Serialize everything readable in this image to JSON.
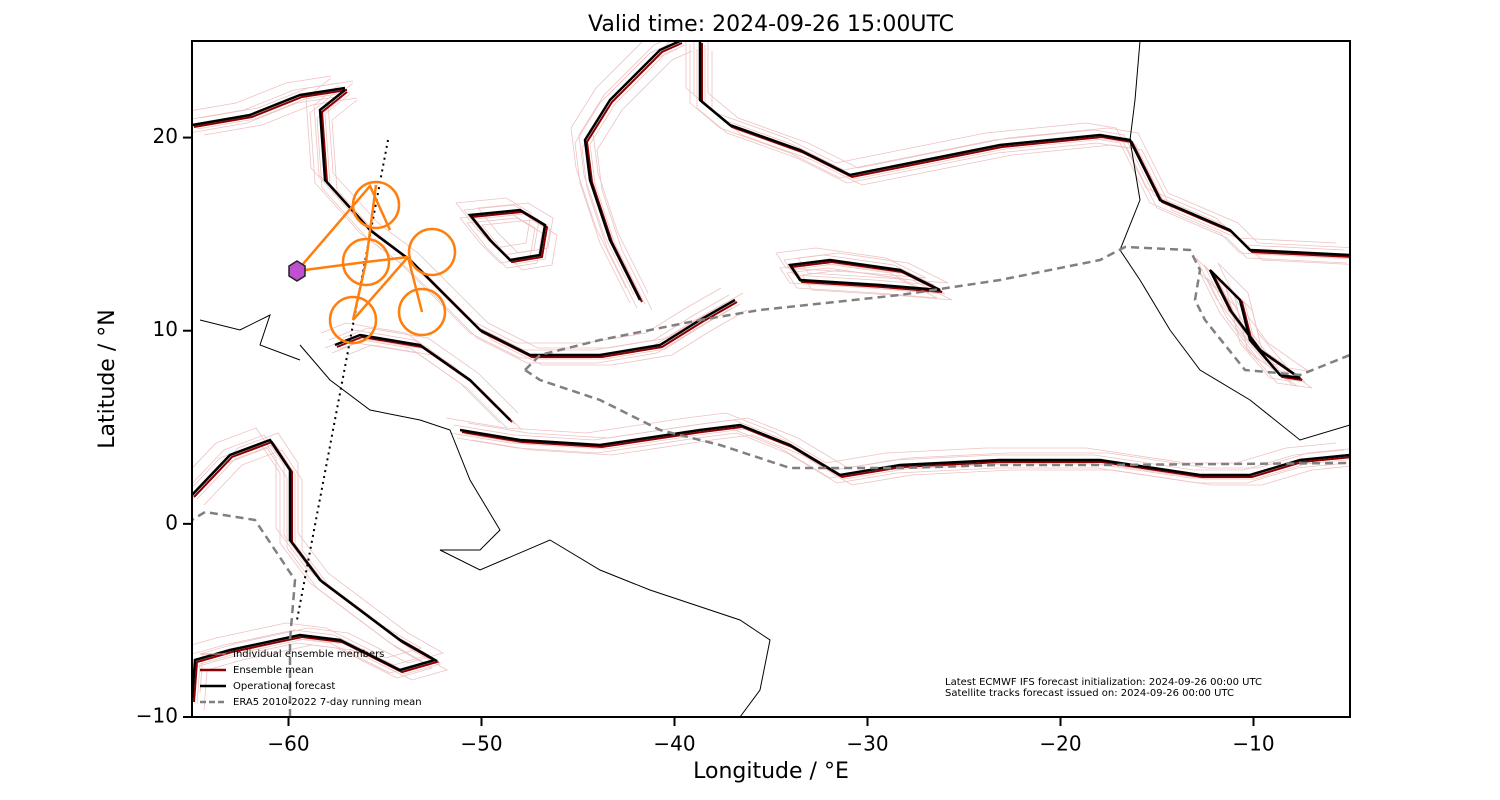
{
  "chart_data": {
    "type": "map",
    "title": "Valid time: 2024-09-26 15:00UTC",
    "x_label": "Longitude / °E",
    "y_label": "Latitude / °N",
    "xlim": [
      -65,
      -5
    ],
    "ylim": [
      -10,
      25
    ],
    "xticks": [
      {
        "value": -60,
        "label": "−60"
      },
      {
        "value": -50,
        "label": "−50"
      },
      {
        "value": -40,
        "label": "−40"
      },
      {
        "value": -30,
        "label": "−30"
      },
      {
        "value": -20,
        "label": "−20"
      },
      {
        "value": -10,
        "label": "−10"
      }
    ],
    "yticks": [
      {
        "value": -10,
        "label": "−10"
      },
      0,
      10,
      20
    ],
    "legend": [
      {
        "name": "Individual ensemble members",
        "color": "#e39a9a"
      },
      {
        "name": "Ensemble mean",
        "color": "#8b0000"
      },
      {
        "name": "Operational forecast",
        "color": "#000000"
      },
      {
        "name": "ERA5 2010-2022 7-day running mean",
        "color": "#808080"
      }
    ],
    "annotations": [
      "Latest ECMWF IFS forecast initialization: 2024-09-26 00:00 UTC",
      "Satellite tracks forecast issued on: 2024-09-26 00:00 UTC"
    ]
  }
}
